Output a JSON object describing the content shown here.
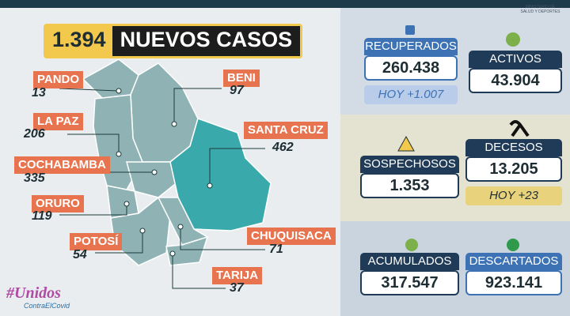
{
  "header": {
    "count": "1.394",
    "title": "NUEVOS CASOS",
    "ministry": "MINISTERIO DE SALUD Y DEPORTES"
  },
  "departments": [
    {
      "name": "PANDO",
      "value": "13"
    },
    {
      "name": "BENI",
      "value": "97"
    },
    {
      "name": "LA PAZ",
      "value": "206"
    },
    {
      "name": "SANTA CRUZ",
      "value": "462"
    },
    {
      "name": "COCHABAMBA",
      "value": "335"
    },
    {
      "name": "ORURO",
      "value": "119"
    },
    {
      "name": "POTOSÍ",
      "value": "54"
    },
    {
      "name": "CHUQUISACA",
      "value": "71"
    },
    {
      "name": "TARIJA",
      "value": "37"
    }
  ],
  "stats": {
    "recuperados": {
      "label": "RECUPERADOS",
      "value": "260.438",
      "today": "HOY +1.007"
    },
    "activos": {
      "label": "ACTIVOS",
      "value": "43.904"
    },
    "sospechosos": {
      "label": "SOSPECHOSOS",
      "value": "1.353"
    },
    "decesos": {
      "label": "DECESOS",
      "value": "13.205",
      "today": "HOY +23"
    },
    "acumulados": {
      "label": "ACUMULADOS",
      "value": "317.547"
    },
    "descartados": {
      "label": "DESCARTADOS",
      "value": "923.141"
    }
  },
  "logo": {
    "title": "#Unidos",
    "subtitle": "ContraElCovid"
  }
}
